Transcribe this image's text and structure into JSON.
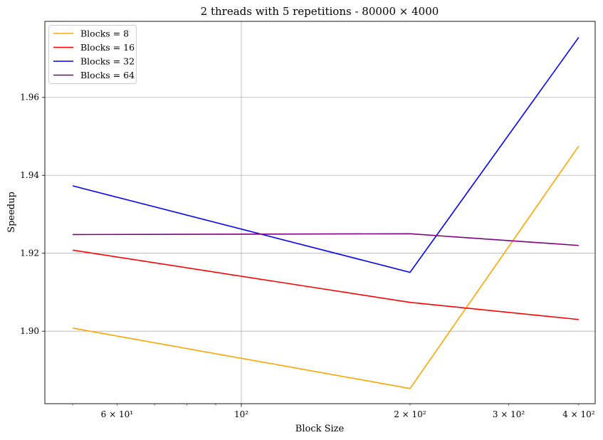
{
  "chart_data": {
    "type": "line",
    "title": "2 threads with 5 repetitions - 80000 × 4000",
    "xlabel": "Block Size",
    "ylabel": "Speedup",
    "xscale": "log",
    "xlim": [
      44.6,
      428
    ],
    "ylim": [
      1.8814,
      1.9795
    ],
    "x": [
      50,
      200,
      400
    ],
    "x_tick_labels": [
      {
        "value": 60,
        "label": "6 × 10¹"
      },
      {
        "value": 100,
        "label": "10²"
      },
      {
        "value": 200,
        "label": "2 × 10²"
      },
      {
        "value": 300,
        "label": "3 × 10²"
      },
      {
        "value": 400,
        "label": "4 × 10²"
      }
    ],
    "y_ticks": [
      1.9,
      1.92,
      1.94,
      1.96
    ],
    "y_tick_labels": [
      "1.90",
      "1.92",
      "1.94",
      "1.96"
    ],
    "grid": "major only",
    "legend_position": "upper-left",
    "series": [
      {
        "name": "Blocks = 8",
        "color": "#FFA500",
        "values": [
          1.9008,
          1.8853,
          1.9475
        ]
      },
      {
        "name": "Blocks = 16",
        "color": "#FF0000",
        "values": [
          1.9208,
          1.9074,
          1.903
        ]
      },
      {
        "name": "Blocks = 32",
        "color": "#0000FF",
        "values": [
          1.9373,
          1.9151,
          1.9754
        ]
      },
      {
        "name": "Blocks = 64",
        "color": "#800080",
        "values": [
          1.9248,
          1.925,
          1.922
        ]
      }
    ]
  }
}
